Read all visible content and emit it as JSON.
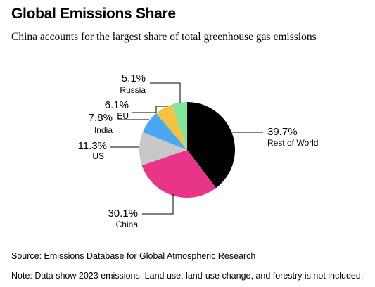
{
  "title": "Global Emissions Share",
  "subtitle": "China accounts for the largest share of total greenhouse gas emissions",
  "source": "Source: Emissions Database for Global Atmospheric Research",
  "note": "Note: Data show 2023 emissions. Land use, land-use change, and forestry is not included.",
  "chart_data": {
    "type": "pie",
    "title": "Global Emissions Share",
    "subtitle": "China accounts for the largest share of total greenhouse gas emissions",
    "unit": "%",
    "slices": [
      {
        "label": "Rest of World",
        "value": 39.7,
        "value_label": "39.7%",
        "color": "#000000"
      },
      {
        "label": "China",
        "value": 30.1,
        "value_label": "30.1%",
        "color": "#e8358a"
      },
      {
        "label": "US",
        "value": 11.3,
        "value_label": "11.3%",
        "color": "#c8c8c8"
      },
      {
        "label": "India",
        "value": 7.8,
        "value_label": "7.8%",
        "color": "#4aa8f0"
      },
      {
        "label": "EU",
        "value": 6.1,
        "value_label": "6.1%",
        "color": "#f5c342"
      },
      {
        "label": "Russia",
        "value": 5.1,
        "value_label": "5.1%",
        "color": "#7de89a"
      }
    ]
  }
}
